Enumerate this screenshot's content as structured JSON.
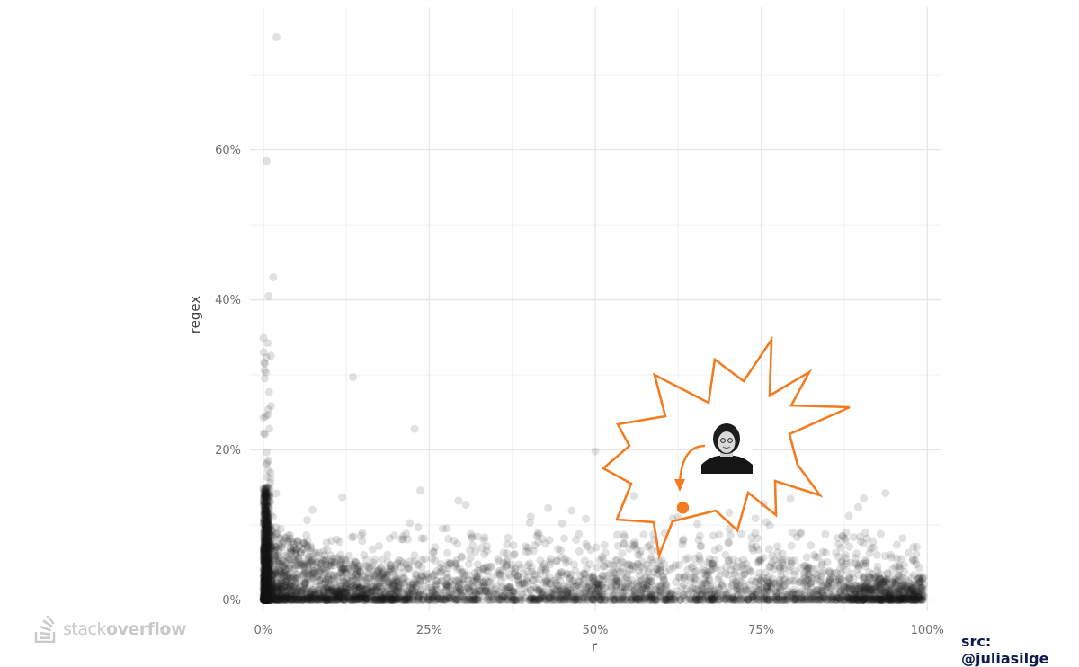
{
  "chart_data": {
    "type": "scatter",
    "title": "",
    "xlabel": "r",
    "ylabel": "regex",
    "xlim": [
      -0.02,
      1.02
    ],
    "ylim": [
      -0.015,
      0.79
    ],
    "x_major_ticks": [
      0,
      0.25,
      0.5,
      0.75,
      1.0
    ],
    "x_tick_labels": [
      "0%",
      "25%",
      "50%",
      "75%",
      "100%"
    ],
    "y_major_ticks": [
      0,
      0.2,
      0.4,
      0.6
    ],
    "y_tick_labels": [
      "0%",
      "20%",
      "40%",
      "60%"
    ],
    "grid": true,
    "legend": "none",
    "marker_color": "#1a1a1a",
    "marker_alpha": 0.13,
    "notable_points": [
      {
        "x": 0.02,
        "y": 0.75
      },
      {
        "x": 0.005,
        "y": 0.585
      },
      {
        "x": 0.015,
        "y": 0.43
      },
      {
        "x": 0.008,
        "y": 0.405
      },
      {
        "x": 0.135,
        "y": 0.297
      },
      {
        "x": 0.228,
        "y": 0.228
      },
      {
        "x": 0.5,
        "y": 0.198
      },
      {
        "x": 0.305,
        "y": 0.127
      },
      {
        "x": 0.45,
        "y": 0.102
      },
      {
        "x": 0.93,
        "y": 0.088
      }
    ],
    "highlighted_point": {
      "x": 0.632,
      "y": 0.123,
      "color": "#f47c20"
    }
  },
  "annotation": {
    "burst_color": "#f47c20",
    "portrait": "person-portrait"
  },
  "watermark": {
    "logo_icon": "stack-overflow-logo-icon",
    "text_light": "stack",
    "text_bold": "overflow"
  },
  "credit": "src: @juliasilge"
}
